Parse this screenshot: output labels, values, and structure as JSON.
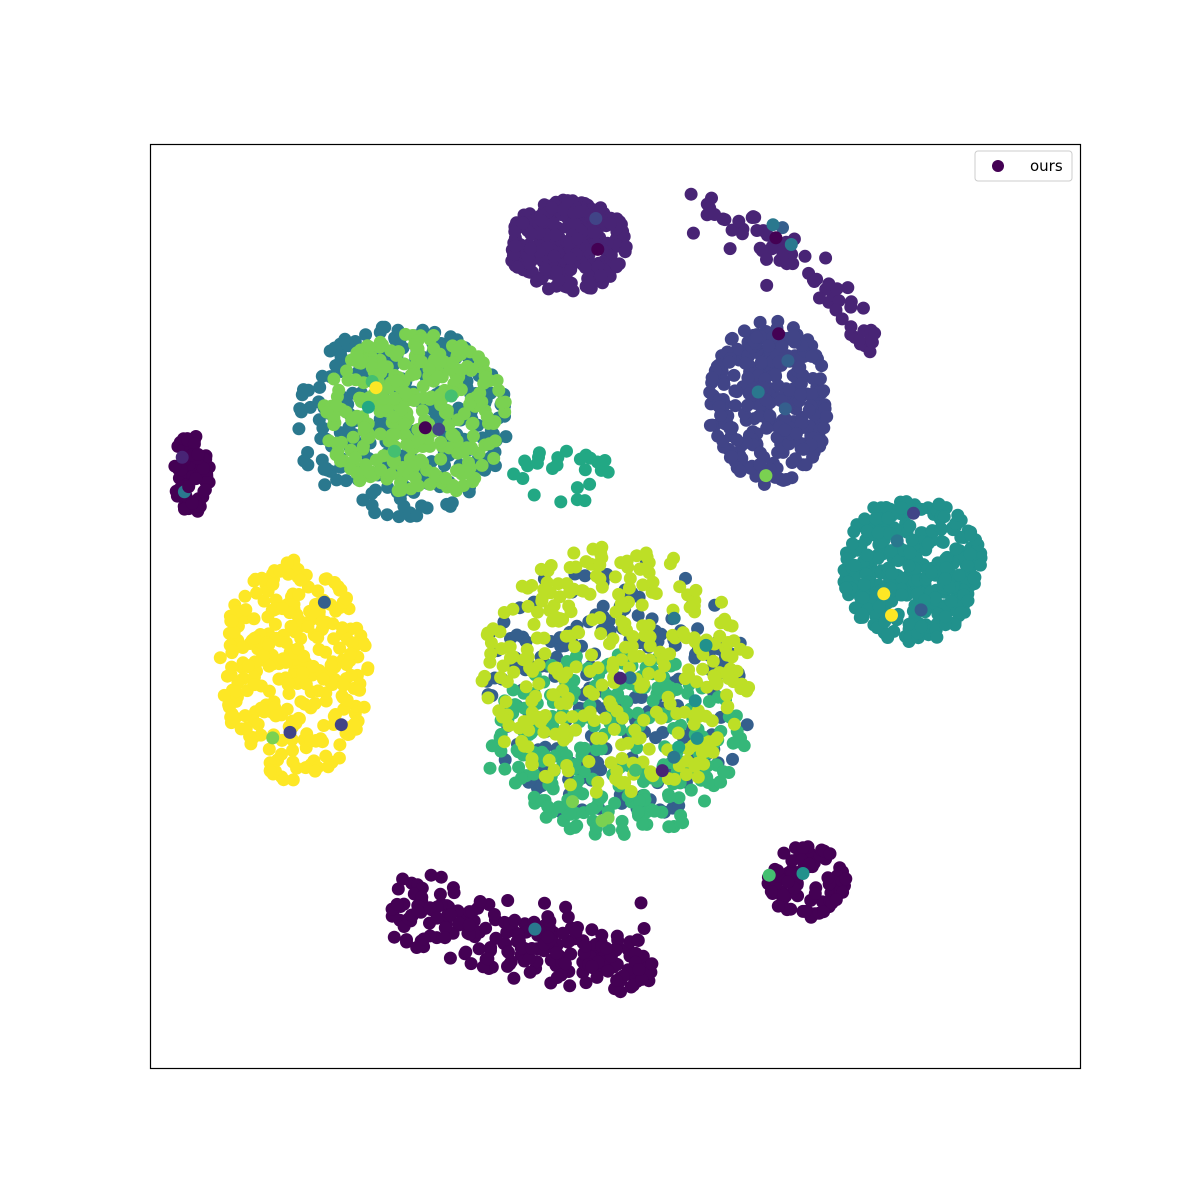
{
  "chart_data": {
    "type": "scatter",
    "title": "",
    "xlabel": "",
    "ylabel": "",
    "xlim": [
      -100,
      100
    ],
    "ylim": [
      -100,
      100
    ],
    "ticks_visible": false,
    "grid": false,
    "legend": {
      "placement": "top-right",
      "entries": [
        "ours"
      ],
      "marker_color": "#440154"
    },
    "colormap": [
      "#440154",
      "#482475",
      "#414487",
      "#355f8d",
      "#2a788e",
      "#21918c",
      "#22a884",
      "#44bf70",
      "#7ad151",
      "#bddf26",
      "#fde725"
    ],
    "clusters": [
      {
        "label": 1,
        "color": "#482475",
        "center": [
          -10,
          78
        ],
        "spread": [
          13,
          10
        ],
        "count": 260
      },
      {
        "label": 1,
        "color": "#482475",
        "center": [
          32,
          80
        ],
        "spread": [
          16,
          3
        ],
        "count": 70,
        "arc": true
      },
      {
        "label": 2,
        "color": "#414487",
        "center": [
          33,
          44
        ],
        "spread": [
          13,
          18
        ],
        "count": 300
      },
      {
        "label": 5,
        "color": "#21918c",
        "center": [
          64,
          8
        ],
        "spread": [
          15,
          16
        ],
        "count": 320
      },
      {
        "label": 3,
        "color": "#2a788e",
        "center": [
          -46,
          40
        ],
        "spread": [
          23,
          21
        ],
        "count": 280
      },
      {
        "label": 8,
        "color": "#7ad151",
        "center": [
          -43,
          41
        ],
        "spread": [
          20,
          18
        ],
        "count": 300
      },
      {
        "label": 4,
        "color": "#355f8d",
        "center": [
          0,
          -18
        ],
        "spread": [
          30,
          29
        ],
        "count": 200
      },
      {
        "label": 7,
        "color": "#35b779",
        "center": [
          0,
          -30
        ],
        "spread": [
          28,
          20
        ],
        "count": 280
      },
      {
        "label": 9,
        "color": "#bddf26",
        "center": [
          0,
          -14
        ],
        "spread": [
          29,
          27
        ],
        "count": 330
      },
      {
        "label": 10,
        "color": "#fde725",
        "center": [
          -69,
          -14
        ],
        "spread": [
          16,
          24
        ],
        "count": 320
      },
      {
        "label": 0,
        "color": "#440154",
        "center": [
          -91,
          29
        ],
        "spread": [
          4,
          9
        ],
        "count": 70
      },
      {
        "label": 0,
        "color": "#440154",
        "center": [
          -20,
          -72
        ],
        "spread": [
          28,
          9
        ],
        "count": 230,
        "diagonal": true
      },
      {
        "label": 0,
        "color": "#440154",
        "center": [
          41,
          -60
        ],
        "spread": [
          9,
          8
        ],
        "count": 80
      },
      {
        "label": 6,
        "color": "#22a884",
        "center": [
          -12,
          27
        ],
        "spread": [
          12,
          8
        ],
        "count": 25
      }
    ],
    "outliers_count": 60
  }
}
